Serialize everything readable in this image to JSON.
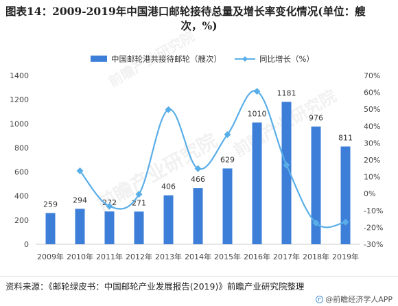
{
  "title": {
    "line1": "图表14：2009-2019年中国港口邮轮接待总量及增长率变化情况(单位：艘",
    "line2": "次，%)"
  },
  "watermark": "前瞻产业研究院",
  "chart_data": {
    "type": "bar+line",
    "categories": [
      "2009年",
      "2010年",
      "2011年",
      "2012年",
      "2013年",
      "2014年",
      "2015年",
      "2016年",
      "2017年",
      "2018年",
      "2019年"
    ],
    "series": [
      {
        "name": "中国邮轮港共接待邮轮（艘次）",
        "type": "bar",
        "axis": "left",
        "color": "#3d7fd8",
        "values": [
          259,
          294,
          272,
          271,
          406,
          466,
          629,
          1010,
          1181,
          976,
          811
        ],
        "labels": [
          "259",
          "294",
          "272",
          "271",
          "406",
          "466",
          "629",
          "1010",
          "1181",
          "976",
          "811"
        ]
      },
      {
        "name": "同比增长（%）",
        "type": "line",
        "axis": "right",
        "color": "#5aaee8",
        "values": [
          null,
          13.5,
          -7.5,
          -0.4,
          49.8,
          14.8,
          35.0,
          60.6,
          16.9,
          -17.4,
          -16.9
        ]
      }
    ],
    "yleft": {
      "min": 0,
      "max": 1400,
      "ticks": [
        "0",
        "200",
        "400",
        "600",
        "800",
        "1000",
        "1200",
        "1400"
      ]
    },
    "yright": {
      "min": -30,
      "max": 70,
      "ticks": [
        "-30%",
        "-20%",
        "-10%",
        "0%",
        "10%",
        "20%",
        "30%",
        "40%",
        "50%",
        "60%",
        "70%"
      ]
    },
    "legend_position": "top-center"
  },
  "footer": {
    "source": "资料来源：《邮轮绿皮书：中国邮轮产业发展报告(2019)》前瞻产业研究院整理",
    "brand": "@前瞻经济学人APP"
  }
}
